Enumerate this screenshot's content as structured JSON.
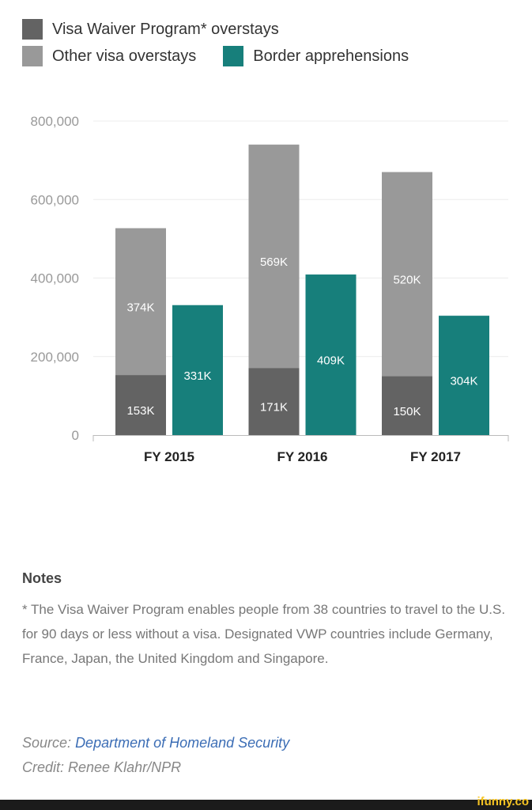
{
  "chart_data": {
    "type": "bar",
    "stacked_and_grouped": true,
    "categories": [
      "FY 2015",
      "FY 2016",
      "FY 2017"
    ],
    "series": [
      {
        "name": "Visa Waiver Program* overstays",
        "stack": "overstays",
        "values": [
          153000,
          171000,
          150000
        ],
        "labels": [
          "153K",
          "171K",
          "150K"
        ],
        "color": "#636363"
      },
      {
        "name": "Other visa overstays",
        "stack": "overstays",
        "values": [
          374000,
          569000,
          520000
        ],
        "labels": [
          "374K",
          "569K",
          "520K"
        ],
        "color": "#999999"
      },
      {
        "name": "Border apprehensions",
        "stack": "apprehensions",
        "values": [
          331000,
          409000,
          304000
        ],
        "labels": [
          "331K",
          "409K",
          "304K"
        ],
        "color": "#177f7b"
      }
    ],
    "yticks": [
      "0",
      "200,000",
      "400,000",
      "600,000",
      "800,000"
    ],
    "ytick_values": [
      0,
      200000,
      400000,
      600000,
      800000
    ],
    "ylim": [
      0,
      800000
    ],
    "grid": true,
    "legend": "top-left"
  },
  "notes": {
    "title": "Notes",
    "text": "* The Visa Waiver Program enables people from 38 countries to travel to the U.S. for 90 days or less without a visa. Designated VWP countries include Germany, France, Japan, the United Kingdom and Singapore."
  },
  "source": {
    "label": "Source:",
    "link": "Department of Homeland Security"
  },
  "credit": "Credit: Renee Klahr/NPR",
  "watermark": "ifunny.co"
}
